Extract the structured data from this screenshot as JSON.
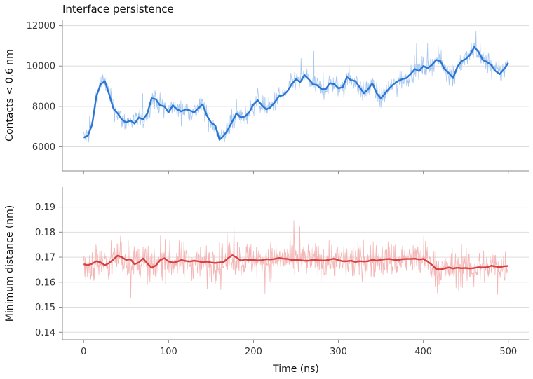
{
  "chart_data": [
    {
      "type": "line",
      "title": "Interface persistence",
      "xlabel": "",
      "ylabel": "Contacts < 0.6 nm",
      "xlim": [
        -25,
        525
      ],
      "ylim": [
        4800,
        12300
      ],
      "xticks": [
        0,
        100,
        200,
        300,
        400,
        500
      ],
      "yticks": [
        6000,
        8000,
        10000,
        12000
      ],
      "yticklabels": [
        "6000",
        "8000",
        "10000",
        "12000"
      ],
      "grid": "horizontal",
      "colors": {
        "raw": "#a8c8f0",
        "smooth": "#2b76d2"
      },
      "series": [
        {
          "role": "smoothed",
          "x": [
            0,
            5,
            10,
            15,
            20,
            25,
            30,
            35,
            40,
            45,
            50,
            55,
            60,
            65,
            70,
            75,
            80,
            85,
            90,
            95,
            100,
            105,
            110,
            115,
            120,
            125,
            130,
            135,
            140,
            145,
            150,
            155,
            160,
            165,
            170,
            175,
            180,
            185,
            190,
            195,
            200,
            205,
            210,
            215,
            220,
            225,
            230,
            235,
            240,
            245,
            250,
            255,
            260,
            265,
            270,
            275,
            280,
            285,
            290,
            295,
            300,
            305,
            310,
            315,
            320,
            325,
            330,
            335,
            340,
            345,
            350,
            355,
            360,
            365,
            370,
            375,
            380,
            385,
            390,
            395,
            400,
            405,
            410,
            415,
            420,
            425,
            430,
            435,
            440,
            445,
            450,
            455,
            460,
            465,
            470,
            475,
            480,
            485,
            490,
            495,
            500
          ],
          "y": [
            6450,
            6550,
            7100,
            8500,
            9100,
            9250,
            8600,
            7900,
            7650,
            7350,
            7200,
            7300,
            7150,
            7450,
            7350,
            7650,
            8400,
            8350,
            8050,
            8000,
            7700,
            8050,
            7850,
            7750,
            7850,
            7800,
            7700,
            7900,
            8100,
            7550,
            7200,
            7050,
            6350,
            6550,
            6850,
            7250,
            7650,
            7450,
            7500,
            7700,
            8100,
            8300,
            8050,
            7850,
            7950,
            8200,
            8500,
            8550,
            8750,
            9100,
            9350,
            9200,
            9550,
            9350,
            9100,
            9050,
            8850,
            8850,
            9150,
            9100,
            8900,
            8950,
            9450,
            9300,
            9250,
            8950,
            8650,
            8850,
            9150,
            8650,
            8400,
            8650,
            8900,
            9100,
            9250,
            9350,
            9400,
            9600,
            9850,
            9750,
            10000,
            9900,
            10050,
            10300,
            10250,
            9850,
            9650,
            9400,
            9950,
            10250,
            10350,
            10550,
            10950,
            10700,
            10300,
            10200,
            10050,
            9750,
            9600,
            9850,
            10150
          ]
        }
      ]
    },
    {
      "type": "line",
      "title": "",
      "xlabel": "Time (ns)",
      "ylabel": "Minimum distance (nm)",
      "xlim": [
        -25,
        525
      ],
      "ylim": [
        0.137,
        0.198
      ],
      "xticks": [
        0,
        100,
        200,
        300,
        400,
        500
      ],
      "xticklabels": [
        "0",
        "100",
        "200",
        "300",
        "400",
        "500"
      ],
      "yticks": [
        0.14,
        0.15,
        0.16,
        0.17,
        0.18,
        0.19
      ],
      "yticklabels": [
        "0.14",
        "0.15",
        "0.16",
        "0.17",
        "0.18",
        "0.19"
      ],
      "grid": "horizontal",
      "colors": {
        "raw": "#f4b6b6",
        "smooth": "#d84040"
      },
      "series": [
        {
          "role": "smoothed",
          "x": [
            0,
            5,
            10,
            15,
            20,
            25,
            30,
            35,
            40,
            45,
            50,
            55,
            60,
            65,
            70,
            75,
            80,
            85,
            90,
            95,
            100,
            105,
            110,
            115,
            120,
            125,
            130,
            135,
            140,
            145,
            150,
            155,
            160,
            165,
            170,
            175,
            180,
            185,
            190,
            195,
            200,
            205,
            210,
            215,
            220,
            225,
            230,
            235,
            240,
            245,
            250,
            255,
            260,
            265,
            270,
            275,
            280,
            285,
            290,
            295,
            300,
            305,
            310,
            315,
            320,
            325,
            330,
            335,
            340,
            345,
            350,
            355,
            360,
            365,
            370,
            375,
            380,
            385,
            390,
            395,
            400,
            405,
            410,
            415,
            420,
            425,
            430,
            435,
            440,
            445,
            450,
            455,
            460,
            465,
            470,
            475,
            480,
            485,
            490,
            495,
            500
          ],
          "y": [
            0.1672,
            0.1668,
            0.1674,
            0.1684,
            0.1679,
            0.1668,
            0.1677,
            0.1691,
            0.1706,
            0.17,
            0.1689,
            0.1692,
            0.1672,
            0.1679,
            0.1695,
            0.1675,
            0.1658,
            0.1667,
            0.1688,
            0.1696,
            0.1683,
            0.1678,
            0.1682,
            0.1689,
            0.1685,
            0.1683,
            0.1686,
            0.1684,
            0.1679,
            0.1682,
            0.1679,
            0.1677,
            0.1679,
            0.1681,
            0.1696,
            0.1708,
            0.1699,
            0.1686,
            0.1691,
            0.1689,
            0.1689,
            0.1687,
            0.1688,
            0.1692,
            0.1691,
            0.1693,
            0.1697,
            0.1694,
            0.1693,
            0.1689,
            0.1689,
            0.1688,
            0.1686,
            0.1686,
            0.169,
            0.1688,
            0.1687,
            0.1687,
            0.1691,
            0.1694,
            0.1688,
            0.1684,
            0.1684,
            0.1686,
            0.1681,
            0.1684,
            0.1683,
            0.1684,
            0.169,
            0.1686,
            0.169,
            0.1692,
            0.1693,
            0.169,
            0.1688,
            0.1692,
            0.1693,
            0.1693,
            0.1694,
            0.1691,
            0.1693,
            0.1683,
            0.167,
            0.1653,
            0.1651,
            0.1655,
            0.1659,
            0.1655,
            0.1658,
            0.1656,
            0.1657,
            0.1655,
            0.1657,
            0.166,
            0.1659,
            0.166,
            0.1666,
            0.1663,
            0.166,
            0.1664,
            0.1665
          ]
        }
      ]
    }
  ]
}
